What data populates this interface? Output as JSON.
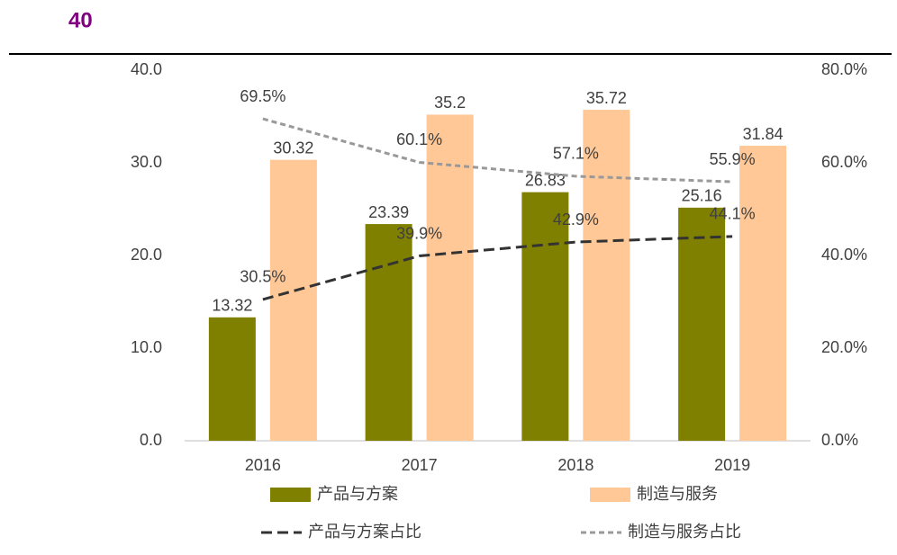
{
  "header": {
    "title": "40"
  },
  "chart_data": {
    "type": "bar",
    "categories": [
      "2016",
      "2017",
      "2018",
      "2019"
    ],
    "series": [
      {
        "name": "产品与方案",
        "color": "#808000",
        "values": [
          13.32,
          23.39,
          26.83,
          25.16
        ]
      },
      {
        "name": "制造与服务",
        "color": "#ffc896",
        "values": [
          30.32,
          35.2,
          35.72,
          31.84
        ]
      },
      {
        "name": "产品与方案占比",
        "type": "line",
        "axis": "y2",
        "color": "#333333",
        "dash": "12,6",
        "values": [
          30.5,
          39.9,
          42.9,
          44.1
        ],
        "value_labels": [
          "30.5%",
          "39.9%",
          "42.9%",
          "44.1%"
        ]
      },
      {
        "name": "制造与服务占比",
        "type": "line",
        "axis": "y2",
        "color": "#999999",
        "dash": "6,4",
        "values": [
          69.5,
          60.1,
          57.1,
          55.9
        ],
        "value_labels": [
          "69.5%",
          "60.1%",
          "57.1%",
          "55.9%"
        ]
      }
    ],
    "ylim": [
      0,
      40
    ],
    "yticks": [
      {
        "value": 0,
        "label": "0.0"
      },
      {
        "value": 10,
        "label": "10.0"
      },
      {
        "value": 20,
        "label": "20.0"
      },
      {
        "value": 30,
        "label": "30.0"
      },
      {
        "value": 40,
        "label": "40.0"
      }
    ],
    "y2lim": [
      0,
      80
    ],
    "y2ticks": [
      {
        "value": 0,
        "label": "0.0%"
      },
      {
        "value": 20,
        "label": "20.0%"
      },
      {
        "value": 40,
        "label": "40.0%"
      },
      {
        "value": 60,
        "label": "60.0%"
      },
      {
        "value": 80,
        "label": "80.0%"
      }
    ]
  }
}
